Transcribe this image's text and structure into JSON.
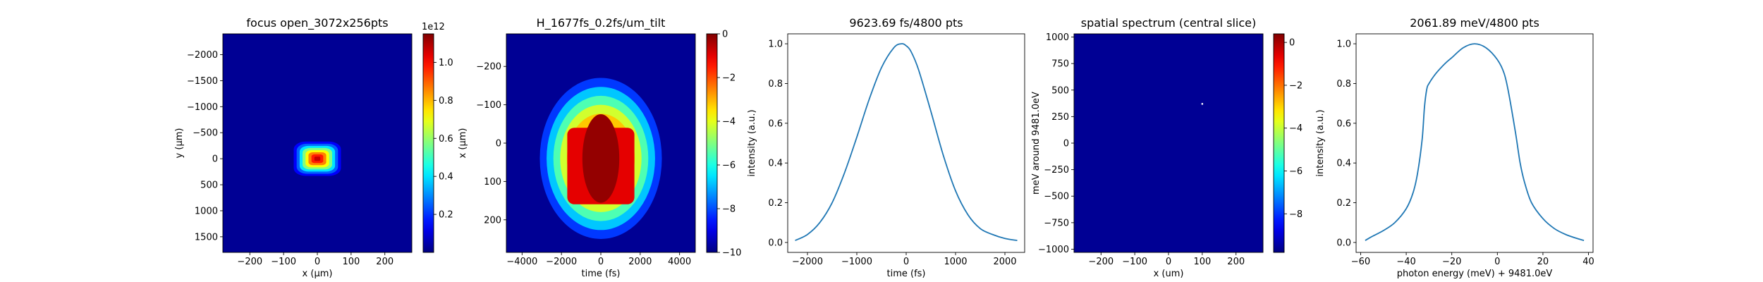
{
  "chart_data": [
    {
      "type": "heatmap",
      "title": "focus open_3072x256pts",
      "xlabel": "x (μm)",
      "ylabel": "y (μm)",
      "xlim": [
        -280,
        280
      ],
      "ylim": [
        1800,
        -2400
      ],
      "xticks": [
        -200,
        -100,
        0,
        100,
        200
      ],
      "xtick_labels": [
        "−200",
        "−100",
        "0",
        "100",
        "200"
      ],
      "yticks": [
        -2000,
        -1500,
        -1000,
        -500,
        0,
        500,
        1000,
        1500
      ],
      "ytick_labels": [
        "−2000",
        "−1500",
        "−1000",
        "−500",
        "0",
        "500",
        "1000",
        "1500"
      ],
      "colormap": "jet",
      "colorbar": {
        "range": [
          0,
          1.15
        ],
        "ticks": [
          0.2,
          0.4,
          0.6,
          0.8,
          1.0
        ],
        "tick_labels": [
          "0.2",
          "0.4",
          "0.6",
          "0.8",
          "1.0"
        ],
        "offset_label": "1e12"
      },
      "blob": {
        "center": [
          0,
          0
        ],
        "half_width": [
          70,
          330
        ],
        "peak": 1.1
      }
    },
    {
      "type": "heatmap",
      "title": "H_1677fs_0.2fs/um_tilt",
      "xlabel": "time (fs)",
      "ylabel": "x (μm)",
      "xlim": [
        -4800,
        4800
      ],
      "ylim": [
        285,
        -285
      ],
      "xticks": [
        -4000,
        -2000,
        0,
        2000,
        4000
      ],
      "xtick_labels": [
        "−4000",
        "−2000",
        "0",
        "2000",
        "4000"
      ],
      "yticks": [
        -200,
        -100,
        0,
        100,
        200
      ],
      "ytick_labels": [
        "−200",
        "−100",
        "0",
        "100",
        "200"
      ],
      "colormap": "jet",
      "colorbar": {
        "range": [
          -10,
          0
        ],
        "ticks": [
          0,
          -2,
          -4,
          -6,
          -8,
          -10
        ],
        "tick_labels": [
          "0",
          "−2",
          "−4",
          "−6",
          "−8",
          "−10"
        ]
      },
      "blob": {
        "center": [
          0,
          40
        ],
        "half_width": [
          3100,
          210
        ]
      }
    },
    {
      "type": "line",
      "title": "9623.69 fs/4800 pts",
      "xlabel": "time (fs)",
      "ylabel": "intensity (a.u.)",
      "xlim": [
        -2400,
        2400
      ],
      "ylim": [
        -0.05,
        1.05
      ],
      "xticks": [
        -2000,
        -1000,
        0,
        1000,
        2000
      ],
      "xtick_labels": [
        "−2000",
        "−1000",
        "0",
        "1000",
        "2000"
      ],
      "yticks": [
        0.0,
        0.2,
        0.4,
        0.6,
        0.8,
        1.0
      ],
      "ytick_labels": [
        "0.0",
        "0.2",
        "0.4",
        "0.6",
        "0.8",
        "1.0"
      ],
      "color": "#1f77b4",
      "x": [
        -2250,
        -2000,
        -1750,
        -1500,
        -1250,
        -1000,
        -750,
        -500,
        -250,
        -100,
        0,
        100,
        250,
        500,
        750,
        1000,
        1250,
        1500,
        1750,
        2000,
        2250
      ],
      "y": [
        0.01,
        0.04,
        0.1,
        0.2,
        0.35,
        0.53,
        0.72,
        0.88,
        0.98,
        1.0,
        0.99,
        0.96,
        0.87,
        0.66,
        0.44,
        0.26,
        0.14,
        0.07,
        0.04,
        0.02,
        0.01
      ]
    },
    {
      "type": "heatmap",
      "title": "spatial spectrum (central slice)",
      "xlabel": "x (um)",
      "ylabel": "meV around 9481.0eV",
      "xlim": [
        -280,
        280
      ],
      "ylim": [
        -1030,
        1030
      ],
      "xticks": [
        -200,
        -100,
        0,
        100,
        200
      ],
      "xtick_labels": [
        "−200",
        "−100",
        "0",
        "100",
        "200"
      ],
      "yticks": [
        1000,
        750,
        500,
        250,
        0,
        -250,
        -500,
        -750,
        -1000
      ],
      "ytick_labels": [
        "1000",
        "750",
        "500",
        "250",
        "0",
        "−250",
        "−500",
        "−750",
        "−1000"
      ],
      "colormap": "jet",
      "colorbar": {
        "range": [
          -9.8,
          0.4
        ],
        "ticks": [
          0,
          -2,
          -4,
          -6,
          -8
        ],
        "tick_labels": [
          "0",
          "−2",
          "−4",
          "−6",
          "−8"
        ]
      },
      "spot": [
        100,
        370
      ]
    },
    {
      "type": "line",
      "title": "2061.89 meV/4800 pts",
      "xlabel": "photon energy (meV) + 9481.0eV",
      "ylabel": "intensity (a.u.)",
      "xlim": [
        -62,
        42
      ],
      "ylim": [
        -0.05,
        1.05
      ],
      "xticks": [
        -60,
        -40,
        -20,
        0,
        20,
        40
      ],
      "xtick_labels": [
        "−60",
        "−40",
        "−20",
        "0",
        "20",
        "40"
      ],
      "yticks": [
        0.0,
        0.2,
        0.4,
        0.6,
        0.8,
        1.0
      ],
      "ytick_labels": [
        "0.0",
        "0.2",
        "0.4",
        "0.6",
        "0.8",
        "1.0"
      ],
      "color": "#1f77b4",
      "x": [
        -58,
        -55,
        -50,
        -45,
        -40,
        -37,
        -35,
        -33,
        -32,
        -31,
        -30,
        -27,
        -23,
        -20,
        -15,
        -10,
        -5,
        0,
        3,
        5,
        8,
        10,
        12,
        15,
        20,
        25,
        30,
        35,
        38
      ],
      "y": [
        0.01,
        0.03,
        0.06,
        0.1,
        0.17,
        0.25,
        0.35,
        0.52,
        0.68,
        0.77,
        0.8,
        0.85,
        0.9,
        0.93,
        0.98,
        1.0,
        0.98,
        0.92,
        0.85,
        0.75,
        0.55,
        0.4,
        0.3,
        0.2,
        0.12,
        0.07,
        0.04,
        0.02,
        0.01
      ]
    }
  ]
}
